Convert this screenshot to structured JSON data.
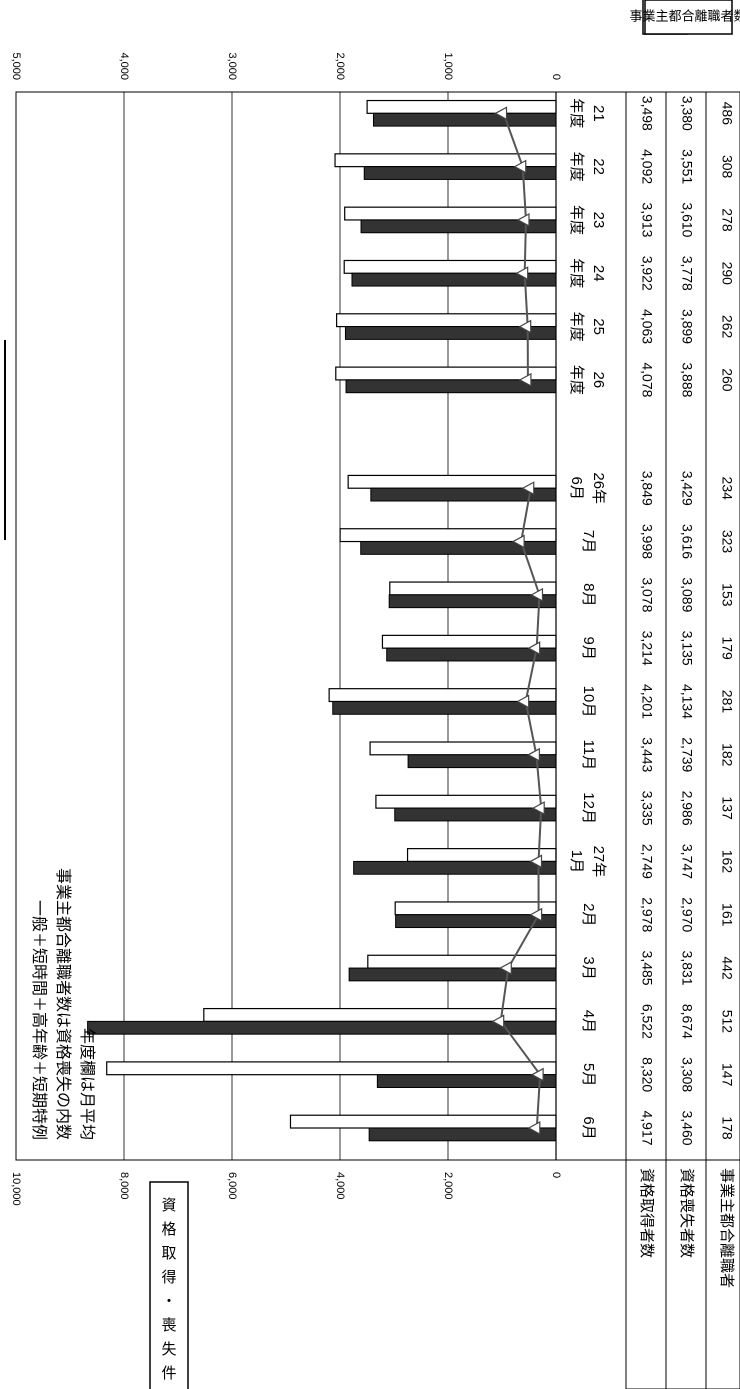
{
  "left_axis_label": "資格取得・喪失件数",
  "right_axis_label": "事業主都合離職者数",
  "notes": [
    "一般＋短時間＋高年齢＋短期特例",
    "事業主都合離職者数は資格喪失の内数",
    "年度欄は月平均"
  ],
  "chart_data": {
    "type": "bar",
    "orientation": "rotated-90-clockwise",
    "categories": [
      "21 年度",
      "22 年度",
      "23 年度",
      "24 年度",
      "25 年度",
      "26 年度",
      "26年 6月",
      "7月",
      "8月",
      "9月",
      "10月",
      "11月",
      "12月",
      "27年 1月",
      "2月",
      "3月",
      "4月",
      "5月",
      "6月"
    ],
    "gap_after_index": 5,
    "left_axis": {
      "ticks": [
        "0",
        "2,000",
        "4,000",
        "6,000",
        "8,000",
        "10,000"
      ],
      "ylim": [
        0,
        10000
      ]
    },
    "right_axis": {
      "ticks": [
        "0",
        "1,000",
        "2,000",
        "3,000",
        "4,000",
        "5,000"
      ],
      "ylim": [
        0,
        5000
      ]
    },
    "grid": true,
    "series": [
      {
        "name": "資格取得者数",
        "type": "bar",
        "axis": "left",
        "color": "#ffffff",
        "values": [
          3498,
          4092,
          3913,
          3922,
          4063,
          4078,
          3849,
          3998,
          3078,
          3214,
          4201,
          3443,
          3335,
          2749,
          2978,
          3485,
          6522,
          8320,
          4917
        ]
      },
      {
        "name": "資格喪失者数",
        "type": "bar",
        "axis": "left",
        "color": "#333333",
        "values": [
          3380,
          3551,
          3610,
          3778,
          3899,
          3888,
          3429,
          3616,
          3089,
          3135,
          4134,
          2739,
          2986,
          3747,
          2970,
          3831,
          8674,
          3308,
          3460
        ]
      },
      {
        "name": "事業主都合離職者",
        "type": "line",
        "axis": "right",
        "color": "#555555",
        "values": [
          486,
          308,
          278,
          290,
          262,
          260,
          234,
          323,
          153,
          179,
          281,
          182,
          137,
          162,
          161,
          442,
          512,
          147,
          178
        ]
      }
    ]
  },
  "table_rows": [
    {
      "label": "資格取得者数",
      "values": [
        "3,498",
        "4,092",
        "3,913",
        "3,922",
        "4,063",
        "4,078",
        "3,849",
        "3,998",
        "3,078",
        "3,214",
        "4,201",
        "3,443",
        "3,335",
        "2,749",
        "2,978",
        "3,485",
        "6,522",
        "8,320",
        "4,917"
      ]
    },
    {
      "label": "資格喪失者数",
      "values": [
        "3,380",
        "3,551",
        "3,610",
        "3,778",
        "3,899",
        "3,888",
        "3,429",
        "3,616",
        "3,089",
        "3,135",
        "4,134",
        "2,739",
        "2,986",
        "3,747",
        "2,970",
        "3,831",
        "8,674",
        "3,308",
        "3,460"
      ]
    },
    {
      "label": "事業主都合離職者",
      "values": [
        "486",
        "308",
        "278",
        "290",
        "262",
        "260",
        "234",
        "323",
        "153",
        "179",
        "281",
        "182",
        "137",
        "162",
        "161",
        "442",
        "512",
        "147",
        "178"
      ]
    }
  ]
}
